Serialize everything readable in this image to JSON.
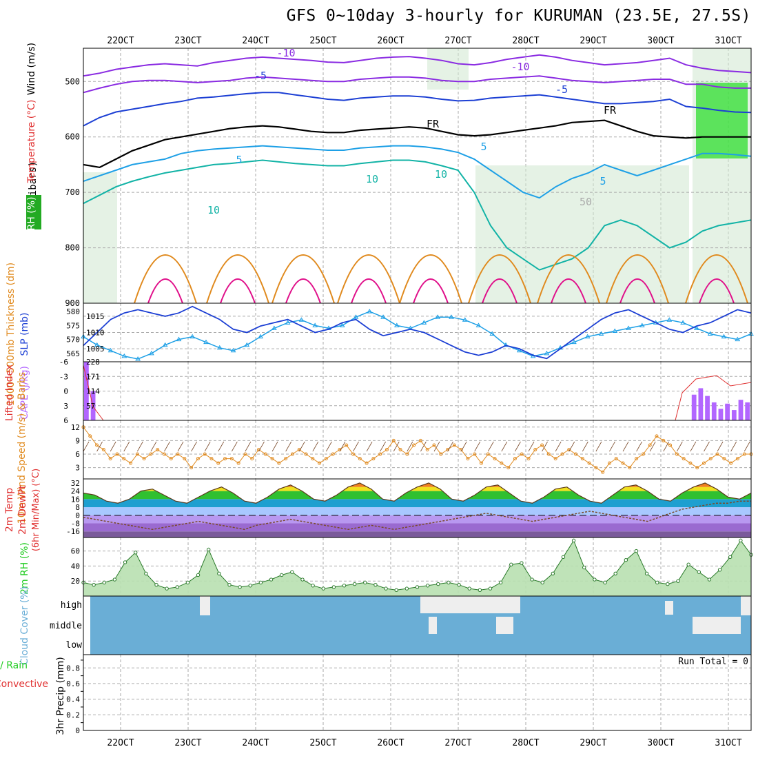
{
  "title": "GFS 0~10day 3-hourly for KURUMAN (23.5E, 27.5S)",
  "date_labels": [
    "22OCT",
    "23OCT",
    "24OCT",
    "25OCT",
    "26OCT",
    "27OCT",
    "28OCT",
    "29OCT",
    "30OCT",
    "31OCT"
  ],
  "colors": {
    "purple": "#8a2be2",
    "blue": "#1c3fd4",
    "cyan": "#1ea0e6",
    "teal": "#12b3a6",
    "orange": "#e08a1e",
    "pink": "#e0108a",
    "green": "#22cc22",
    "cloud": "#6aaed6",
    "grid": "#aaaaaa",
    "lilac": "#b266ff",
    "red": "#e03030",
    "brown": "#7a4a2a"
  },
  "chart_data": [
    {
      "id": "upper",
      "type": "line",
      "title": "Upper-air cross section",
      "ylabels": [
        "Wind (m/s)",
        "Temperature (°C)",
        "RH (%)"
      ],
      "yunits": "(millibars)",
      "ylim": [
        900,
        440
      ],
      "yticks": [
        "500",
        "600",
        "700",
        "800",
        "900"
      ],
      "contour_labels": [
        "-10",
        "-10",
        "-5",
        "-5",
        "FR",
        "FR",
        "5",
        "5",
        "5",
        "10",
        "10",
        "10",
        "50"
      ],
      "series": [
        {
          "name": "-10",
          "color_key": "purple",
          "levels": [
            490,
            485,
            478,
            474,
            470,
            468,
            470,
            472,
            466,
            462,
            458,
            456,
            458,
            460,
            462,
            465,
            466,
            462,
            458,
            456,
            455,
            458,
            462,
            468,
            470,
            466,
            460,
            456,
            452,
            456,
            462,
            466,
            470,
            468,
            466,
            462,
            458,
            470,
            476,
            480,
            482,
            484
          ]
        },
        {
          "name": "-5 upper",
          "color_key": "purple",
          "levels": [
            520,
            512,
            505,
            500,
            498,
            498,
            500,
            502,
            500,
            498,
            494,
            492,
            494,
            496,
            498,
            500,
            500,
            496,
            494,
            492,
            492,
            494,
            498,
            500,
            500,
            496,
            494,
            492,
            490,
            494,
            498,
            500,
            502,
            500,
            498,
            496,
            496,
            505,
            505,
            510,
            512,
            512
          ]
        },
        {
          "name": "-5",
          "color_key": "blue",
          "levels": [
            580,
            565,
            555,
            550,
            545,
            540,
            536,
            530,
            528,
            525,
            522,
            520,
            520,
            524,
            528,
            532,
            534,
            530,
            528,
            526,
            526,
            528,
            532,
            535,
            534,
            530,
            528,
            526,
            524,
            528,
            532,
            536,
            540,
            540,
            538,
            536,
            532,
            545,
            548,
            552,
            555,
            556
          ]
        },
        {
          "name": "FR",
          "color_key": "black",
          "levels": [
            650,
            655,
            640,
            625,
            615,
            605,
            600,
            595,
            590,
            585,
            582,
            580,
            582,
            586,
            590,
            592,
            592,
            588,
            586,
            584,
            582,
            584,
            590,
            596,
            598,
            596,
            592,
            588,
            584,
            580,
            574,
            572,
            570,
            580,
            590,
            598,
            600,
            602,
            600,
            600,
            600,
            600
          ]
        },
        {
          "name": "5",
          "color_key": "cyan",
          "levels": [
            680,
            670,
            660,
            650,
            645,
            640,
            630,
            625,
            622,
            620,
            618,
            616,
            618,
            620,
            622,
            624,
            624,
            620,
            618,
            616,
            616,
            618,
            622,
            628,
            640,
            660,
            680,
            700,
            710,
            690,
            675,
            665,
            650,
            660,
            670,
            660,
            650,
            640,
            630,
            630,
            632,
            635
          ]
        },
        {
          "name": "10",
          "color_key": "teal",
          "levels": [
            720,
            705,
            690,
            680,
            672,
            665,
            660,
            655,
            650,
            648,
            645,
            642,
            645,
            648,
            650,
            652,
            652,
            648,
            645,
            642,
            642,
            645,
            652,
            660,
            700,
            760,
            800,
            820,
            840,
            830,
            820,
            800,
            760,
            750,
            760,
            780,
            800,
            790,
            770,
            760,
            755,
            750
          ]
        }
      ]
    },
    {
      "id": "thickness",
      "type": "line",
      "ylabels": [
        "1000~500mb Thickness (dm)",
        "SLP (mb)"
      ],
      "left_ticks": [
        "580",
        "575",
        "570",
        "565"
      ],
      "right_ticks": [
        "1015",
        "1010",
        "1005"
      ],
      "series": [
        {
          "name": "Thickness (dm)",
          "color_key": "cyan",
          "values": [
            571,
            568,
            566,
            564,
            563,
            565,
            568,
            570,
            571,
            569,
            567,
            566,
            568,
            571,
            574,
            576,
            577,
            575,
            574,
            575,
            578,
            580,
            578,
            575,
            574,
            576,
            578,
            578,
            577,
            575,
            572,
            568,
            566,
            564,
            565,
            567,
            569,
            571,
            572,
            573,
            574,
            575,
            576,
            577,
            576,
            574,
            572,
            571,
            570,
            572
          ]
        },
        {
          "name": "SLP (mb)",
          "color_key": "blue",
          "values": [
            1006,
            1010,
            1014,
            1016,
            1017,
            1016,
            1015,
            1016,
            1018,
            1016,
            1014,
            1011,
            1010,
            1012,
            1013,
            1014,
            1012,
            1010,
            1011,
            1013,
            1014,
            1011,
            1009,
            1010,
            1011,
            1010,
            1008,
            1006,
            1004,
            1003,
            1004,
            1006,
            1005,
            1003,
            1002,
            1005,
            1008,
            1011,
            1014,
            1016,
            1017,
            1015,
            1013,
            1011,
            1010,
            1012,
            1013,
            1015,
            1017,
            1016
          ]
        }
      ]
    },
    {
      "id": "stability",
      "type": "bar",
      "ylabels": [
        "Lifted Index",
        "CAPE (J/kg)"
      ],
      "left_ticks": [
        "-6",
        "-3",
        "0",
        "3",
        "6"
      ],
      "right_ticks": [
        "228",
        "171",
        "114",
        "57"
      ],
      "cape_bars": [
        228,
        114,
        0,
        0,
        0,
        0,
        0,
        0,
        0,
        0,
        0,
        0,
        0,
        0,
        0,
        0,
        0,
        0,
        0,
        0,
        0,
        0,
        0,
        0,
        0,
        0,
        0,
        0,
        0,
        0,
        0,
        0,
        0,
        0,
        0,
        0,
        0,
        0,
        0,
        0,
        0,
        0,
        0,
        0,
        0,
        0,
        0,
        0,
        0,
        0,
        0,
        0,
        0,
        0,
        0,
        0,
        0,
        0,
        0,
        0,
        0,
        0,
        0,
        0,
        0,
        0,
        0,
        0,
        0,
        0,
        0,
        0,
        0,
        0,
        0,
        0,
        0,
        0,
        0,
        0,
        0,
        0,
        0,
        0,
        0,
        0,
        0,
        0,
        0,
        0,
        0,
        100,
        125,
        95,
        70,
        45,
        65,
        40,
        80,
        70
      ]
    },
    {
      "id": "wind10m",
      "type": "line",
      "ylabels": [
        "10m Wind Speed (m/s) & Barbs"
      ],
      "left_ticks": [
        "12",
        "9",
        "6",
        "3"
      ],
      "series": [
        {
          "name": "10m Wind Speed",
          "color_key": "orange",
          "values": [
            12,
            10,
            8,
            7,
            5,
            6,
            5,
            4,
            6,
            5,
            6,
            7,
            6,
            5,
            6,
            5,
            3,
            5,
            6,
            5,
            4,
            5,
            5,
            4,
            6,
            5,
            7,
            6,
            5,
            4,
            5,
            6,
            7,
            6,
            5,
            4,
            5,
            6,
            7,
            8,
            6,
            5,
            4,
            5,
            6,
            7,
            9,
            7,
            6,
            8,
            9,
            7,
            8,
            6,
            7,
            8,
            7,
            5,
            6,
            4,
            6,
            5,
            4,
            3,
            5,
            6,
            5,
            7,
            8,
            6,
            5,
            6,
            7,
            6,
            5,
            4,
            3,
            2,
            4,
            5,
            4,
            3,
            5,
            6,
            8,
            10,
            9,
            8,
            6,
            5,
            4,
            3,
            4,
            5,
            6,
            5,
            4,
            5,
            6,
            6
          ]
        }
      ]
    },
    {
      "id": "temp2m",
      "type": "area",
      "ylabels": [
        "2m Temp",
        "2m DewPt",
        "(6hr Min/Max) (°C)"
      ],
      "left_ticks": [
        "32",
        "24",
        "16",
        "8",
        "0",
        "-8",
        "-16"
      ],
      "series": [
        {
          "name": "2m Temp",
          "color_key": "orange",
          "values": [
            22,
            20,
            14,
            12,
            16,
            24,
            26,
            20,
            14,
            12,
            18,
            24,
            28,
            22,
            14,
            12,
            18,
            26,
            30,
            24,
            16,
            14,
            20,
            28,
            32,
            26,
            16,
            14,
            22,
            28,
            32,
            26,
            16,
            14,
            20,
            28,
            30,
            22,
            14,
            12,
            18,
            26,
            28,
            20,
            14,
            12,
            20,
            28,
            30,
            24,
            16,
            14,
            22,
            28,
            32,
            26,
            18,
            16,
            22
          ]
        },
        {
          "name": "2m DewPt",
          "color_key": "brown",
          "values": [
            -2,
            -4,
            -6,
            -8,
            -10,
            -12,
            -14,
            -12,
            -10,
            -8,
            -6,
            -8,
            -10,
            -12,
            -14,
            -10,
            -8,
            -6,
            -4,
            -6,
            -8,
            -10,
            -12,
            -14,
            -12,
            -10,
            -12,
            -14,
            -12,
            -10,
            -8,
            -6,
            -4,
            -2,
            0,
            2,
            0,
            -2,
            -4,
            -6,
            -4,
            -2,
            0,
            2,
            4,
            2,
            0,
            -2,
            -4,
            -6,
            -2,
            2,
            6,
            8,
            10,
            12,
            12,
            14,
            14
          ]
        }
      ]
    },
    {
      "id": "rh2m",
      "type": "area",
      "ylabels": [
        "2m RH (%)"
      ],
      "left_ticks": [
        "60",
        "40",
        "20"
      ],
      "series": [
        {
          "name": "2m RH",
          "color_key": "green",
          "values": [
            18,
            15,
            18,
            22,
            45,
            58,
            30,
            15,
            10,
            12,
            18,
            28,
            62,
            30,
            15,
            12,
            14,
            18,
            22,
            28,
            32,
            22,
            14,
            10,
            12,
            14,
            16,
            18,
            15,
            10,
            8,
            10,
            12,
            14,
            16,
            18,
            15,
            10,
            8,
            10,
            18,
            42,
            44,
            22,
            18,
            30,
            52,
            74,
            38,
            22,
            18,
            30,
            48,
            60,
            30,
            18,
            16,
            20,
            42,
            32,
            22,
            35,
            52,
            74,
            55
          ]
        }
      ]
    },
    {
      "id": "cloud",
      "type": "area",
      "ylabels": [
        "Cloud Cover (%)"
      ],
      "levels": [
        "high",
        "middle",
        "low"
      ]
    },
    {
      "id": "precip",
      "type": "bar",
      "ylabels": [
        "Total / Rain",
        "Convective",
        "3hr Precip (mm)"
      ],
      "left_ticks": [
        "0.8",
        "0.6",
        "0.4",
        "0.2",
        "0"
      ],
      "run_total_label": "Run Total = 0",
      "values": []
    }
  ]
}
